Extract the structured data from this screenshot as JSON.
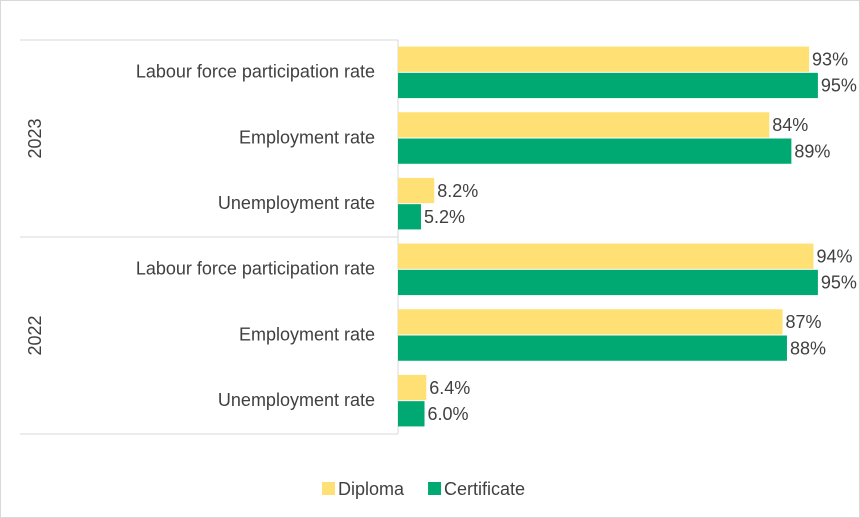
{
  "chart_data": {
    "type": "bar",
    "orientation": "horizontal",
    "group_labels": [
      "2023",
      "2022"
    ],
    "categories": [
      "Labour force participation rate",
      "Employment rate",
      "Unemployment rate",
      "Labour force participation rate",
      "Employment rate",
      "Unemployment rate"
    ],
    "series": [
      {
        "name": "Diploma",
        "color": "#ffe074",
        "values": [
          93,
          84,
          8.2,
          94,
          87,
          6.4
        ],
        "value_labels": [
          "93%",
          "84%",
          "8.2%",
          "94%",
          "87%",
          "6.4%"
        ]
      },
      {
        "name": "Certificate",
        "color": "#00a972",
        "values": [
          95,
          89,
          5.2,
          95,
          88,
          6.0
        ],
        "value_labels": [
          "95%",
          "89%",
          "5.2%",
          "95%",
          "88%",
          "6.0%"
        ]
      }
    ],
    "xlim": [
      0,
      100
    ],
    "legend": "bottom"
  }
}
